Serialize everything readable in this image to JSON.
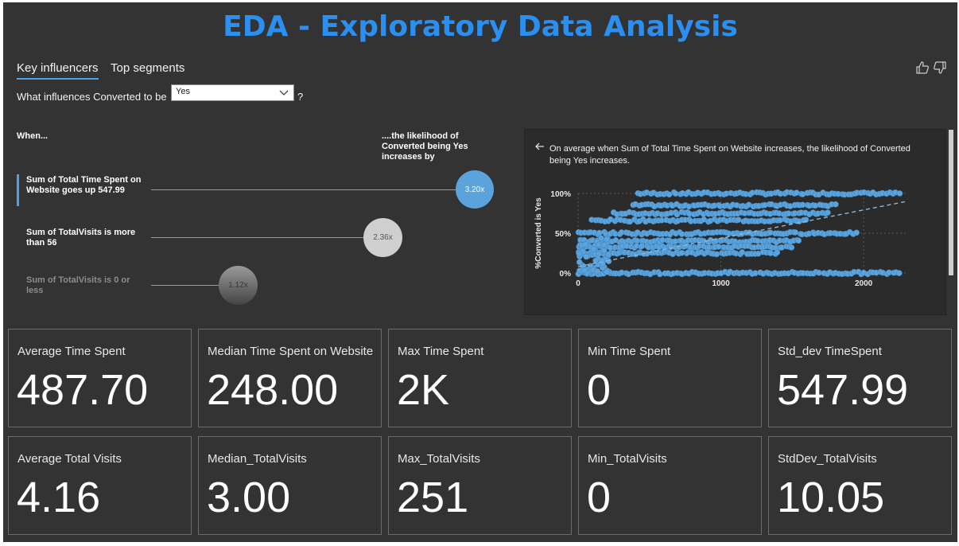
{
  "title": "EDA - Exploratory Data Analysis",
  "tabs": {
    "key_influencers": "Key influencers",
    "top_segments": "Top segments"
  },
  "question": {
    "prefix": "What influences Converted to be",
    "selected": "Yes",
    "suffix": "?"
  },
  "headers": {
    "when": "When...",
    "likelihood": "....the likelihood of Converted being Yes increases by"
  },
  "influencers": [
    {
      "label": "Sum of Total Time Spent on Website goes up 547.99",
      "value": "3.20x"
    },
    {
      "label": "Sum of TotalVisits is more than 56",
      "value": "2.36x"
    },
    {
      "label": "Sum of TotalVisits is 0 or less",
      "value": "1.12x"
    }
  ],
  "detail": {
    "text": "On average when Sum of Total Time Spent on Website increases, the likelihood of Converted being Yes increases."
  },
  "chart_data": {
    "type": "scatter",
    "title": "",
    "xlabel": "",
    "ylabel": "%Converted is Yes",
    "xlim": [
      0,
      2300
    ],
    "ylim": [
      0,
      100
    ],
    "x_ticks": [
      "0",
      "1000",
      "2000"
    ],
    "y_ticks": [
      "100%",
      "50%",
      "0%"
    ],
    "point_color": "#5aa3dc",
    "grid": true,
    "bands": [
      {
        "y": 100,
        "x_range": [
          420,
          2250
        ]
      },
      {
        "y": 85,
        "x_range": [
          380,
          1800
        ]
      },
      {
        "y": 75,
        "x_range": [
          250,
          1750
        ]
      },
      {
        "y": 66,
        "x_range": [
          100,
          1600
        ]
      },
      {
        "y": 50,
        "x_range": [
          0,
          1950
        ]
      },
      {
        "y": 40,
        "x_range": [
          20,
          1550
        ]
      },
      {
        "y": 33,
        "x_range": [
          10,
          1500
        ]
      },
      {
        "y": 25,
        "x_range": [
          0,
          1400
        ]
      },
      {
        "y": 0,
        "x_range": [
          0,
          2250
        ]
      }
    ],
    "trendline": [
      [
        0,
        8
      ],
      [
        2300,
        90
      ]
    ]
  },
  "cards_row1": [
    {
      "label": "Average Time Spent",
      "value": "487.70"
    },
    {
      "label": "Median Time Spent on Website",
      "value": "248.00"
    },
    {
      "label": "Max Time Spent",
      "value": "2K"
    },
    {
      "label": "Min Time Spent",
      "value": "0"
    },
    {
      "label": "Std_dev TimeSpent",
      "value": "547.99"
    }
  ],
  "cards_row2": [
    {
      "label": "Average Total Visits",
      "value": "4.16"
    },
    {
      "label": "Median_TotalVisits",
      "value": "3.00"
    },
    {
      "label": "Max_TotalVisits",
      "value": "251"
    },
    {
      "label": "Min_TotalVisits",
      "value": "0"
    },
    {
      "label": "StdDev_TotalVisits",
      "value": "10.05"
    }
  ]
}
